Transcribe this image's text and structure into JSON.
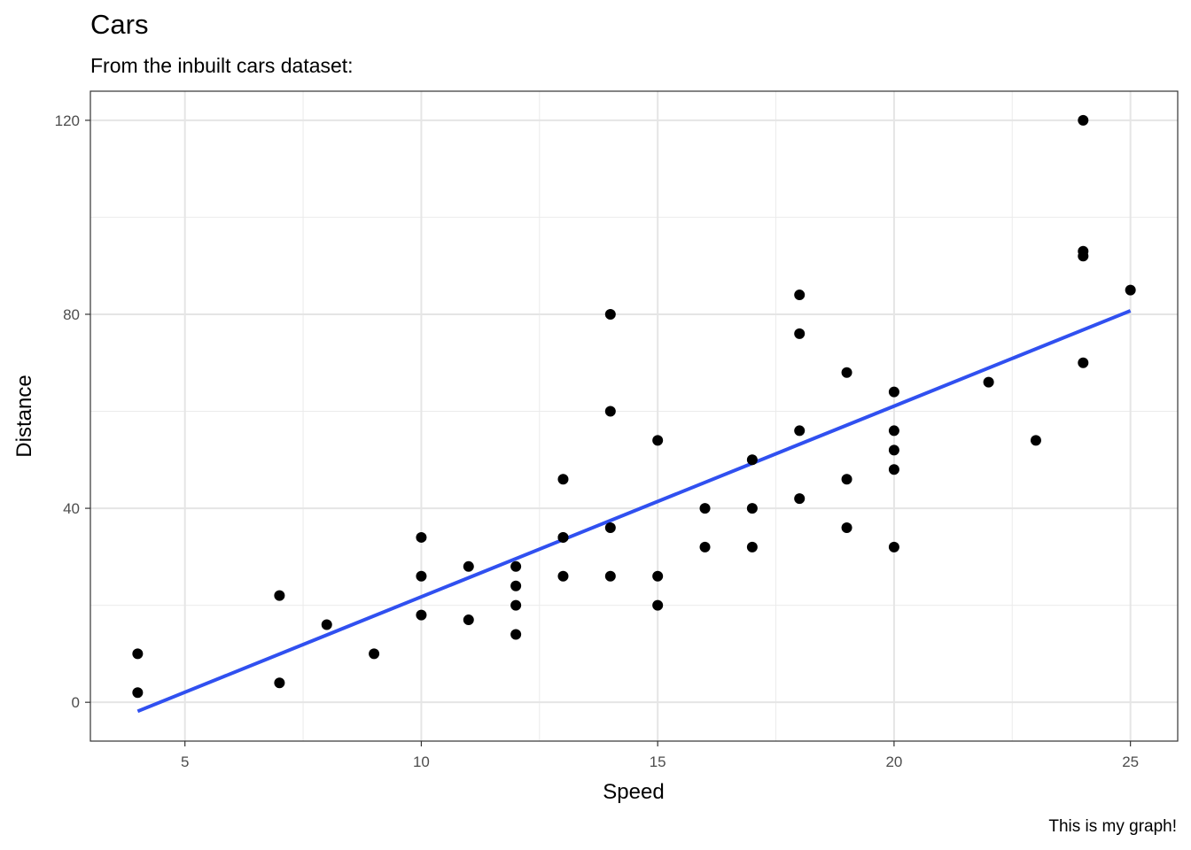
{
  "chart_data": {
    "type": "scatter",
    "title": "Cars",
    "subtitle": "From the inbuilt cars dataset:",
    "caption": "This is my graph!",
    "xlabel": "Speed",
    "ylabel": "Distance",
    "xlim": [
      3,
      26
    ],
    "ylim": [
      -8,
      126
    ],
    "x_ticks": [
      5,
      10,
      15,
      20,
      25
    ],
    "y_ticks": [
      0,
      40,
      80,
      120
    ],
    "grid": true,
    "points": [
      [
        4,
        2
      ],
      [
        4,
        10
      ],
      [
        7,
        4
      ],
      [
        7,
        22
      ],
      [
        8,
        16
      ],
      [
        9,
        10
      ],
      [
        10,
        18
      ],
      [
        10,
        26
      ],
      [
        10,
        34
      ],
      [
        11,
        17
      ],
      [
        11,
        28
      ],
      [
        12,
        14
      ],
      [
        12,
        20
      ],
      [
        12,
        24
      ],
      [
        12,
        28
      ],
      [
        13,
        26
      ],
      [
        13,
        34
      ],
      [
        13,
        34
      ],
      [
        13,
        46
      ],
      [
        14,
        26
      ],
      [
        14,
        36
      ],
      [
        14,
        60
      ],
      [
        14,
        80
      ],
      [
        15,
        20
      ],
      [
        15,
        26
      ],
      [
        15,
        54
      ],
      [
        16,
        32
      ],
      [
        16,
        40
      ],
      [
        17,
        32
      ],
      [
        17,
        40
      ],
      [
        17,
        50
      ],
      [
        18,
        42
      ],
      [
        18,
        56
      ],
      [
        18,
        76
      ],
      [
        18,
        84
      ],
      [
        19,
        36
      ],
      [
        19,
        46
      ],
      [
        19,
        68
      ],
      [
        20,
        32
      ],
      [
        20,
        48
      ],
      [
        20,
        52
      ],
      [
        20,
        56
      ],
      [
        20,
        64
      ],
      [
        22,
        66
      ],
      [
        23,
        54
      ],
      [
        24,
        70
      ],
      [
        24,
        92
      ],
      [
        24,
        93
      ],
      [
        24,
        120
      ],
      [
        25,
        85
      ]
    ],
    "trend_line": {
      "x": [
        4,
        25
      ],
      "y": [
        -1.85,
        80.73
      ],
      "color": "#3050f0"
    },
    "point_color": "#000000"
  }
}
